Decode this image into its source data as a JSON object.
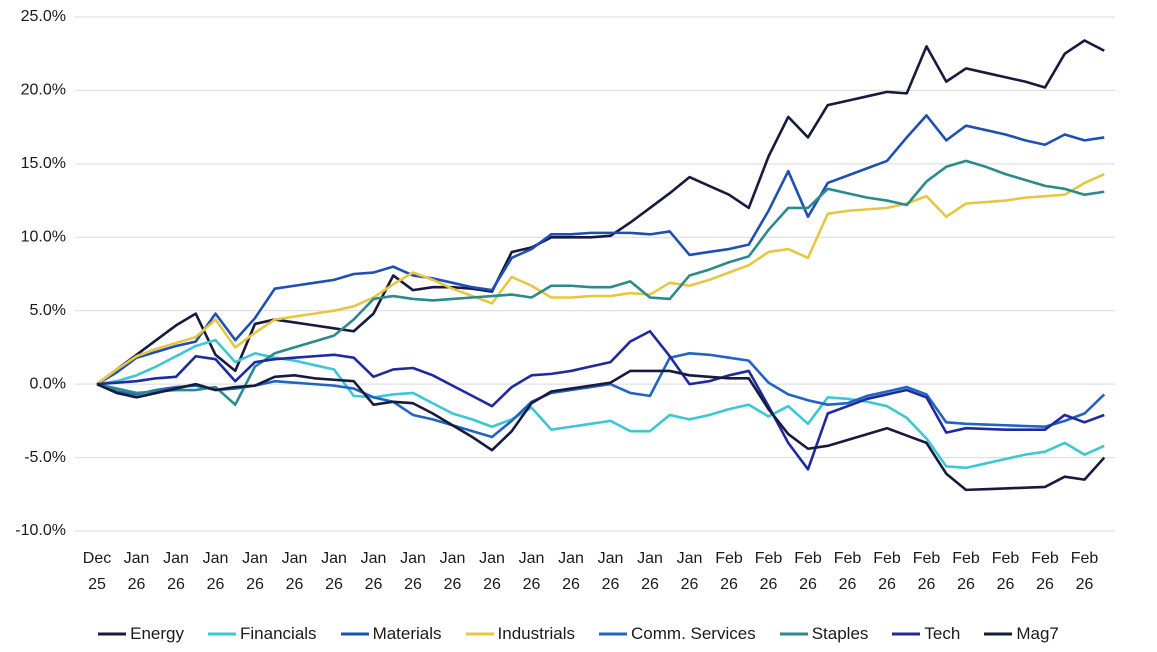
{
  "chart_data": {
    "type": "line",
    "categories": [
      "Dec 25",
      null,
      "Jan 26",
      null,
      "Jan 26",
      null,
      "Jan 26",
      null,
      "Jan 26",
      null,
      "Jan 26",
      null,
      "Jan 26",
      null,
      "Jan 26",
      null,
      "Jan 26",
      null,
      "Jan 26",
      null,
      "Jan 26",
      null,
      "Jan 26",
      null,
      "Jan 26",
      null,
      "Jan 26",
      null,
      "Jan 26",
      null,
      "Jan 26",
      null,
      "Feb 26",
      null,
      "Feb 26",
      null,
      "Feb 26",
      null,
      "Feb 26",
      null,
      "Feb 26",
      null,
      "Feb 26",
      null,
      "Feb 26",
      null,
      "Feb 26",
      null,
      "Feb 26",
      null,
      "Feb 26",
      null
    ],
    "ylim": [
      -10,
      25
    ],
    "yticks": [
      {
        "value": -10,
        "label": "-10.0%"
      },
      {
        "value": -5,
        "label": "-5.0%"
      },
      {
        "value": 0,
        "label": "0.0%"
      },
      {
        "value": 5,
        "label": "5.0%"
      },
      {
        "value": 10,
        "label": "10.0%"
      },
      {
        "value": 15,
        "label": "15.0%"
      },
      {
        "value": 20,
        "label": "20.0%"
      },
      {
        "value": 25,
        "label": "25.0%"
      }
    ],
    "grid": true,
    "series": [
      {
        "name": "Energy",
        "color": "#161b3d",
        "values": [
          0,
          1.0,
          2.0,
          3.0,
          4.0,
          4.8,
          2.0,
          0.9,
          4.1,
          4.4,
          4.2,
          4.0,
          3.8,
          3.6,
          4.8,
          7.4,
          6.4,
          6.6,
          6.6,
          6.5,
          6.3,
          9.0,
          9.3,
          10.0,
          10.0,
          10.0,
          10.1,
          11.0,
          12.0,
          13.0,
          14.1,
          13.5,
          12.9,
          12.0,
          15.5,
          18.2,
          16.8,
          19.0,
          19.3,
          19.6,
          19.9,
          19.8,
          23.0,
          20.6,
          21.5,
          21.2,
          20.9,
          20.6,
          20.2,
          22.5,
          23.4,
          22.7
        ]
      },
      {
        "name": "Financials",
        "color": "#3ec6d3",
        "values": [
          0,
          0.2,
          0.6,
          1.2,
          1.9,
          2.6,
          3.0,
          1.5,
          2.1,
          1.8,
          1.6,
          1.3,
          1.0,
          -0.8,
          -0.9,
          -0.7,
          -0.6,
          -1.3,
          -2.0,
          -2.4,
          -2.9,
          -2.4,
          -1.6,
          -3.1,
          -2.9,
          -2.7,
          -2.5,
          -3.2,
          -3.2,
          -2.1,
          -2.4,
          -2.1,
          -1.7,
          -1.4,
          -2.2,
          -1.5,
          -2.7,
          -0.9,
          -1.0,
          -1.2,
          -1.5,
          -2.3,
          -3.7,
          -5.6,
          -5.7,
          -5.4,
          -5.1,
          -4.8,
          -4.6,
          -4.0,
          -4.8,
          -4.2
        ]
      },
      {
        "name": "Materials",
        "color": "#1e4fb4",
        "values": [
          0,
          0.8,
          1.8,
          2.2,
          2.6,
          2.9,
          4.8,
          3.0,
          4.5,
          6.5,
          6.7,
          6.9,
          7.1,
          7.5,
          7.6,
          8.0,
          7.4,
          7.2,
          6.9,
          6.6,
          6.4,
          8.6,
          9.2,
          10.2,
          10.2,
          10.3,
          10.3,
          10.3,
          10.2,
          10.4,
          8.8,
          9.0,
          9.2,
          9.5,
          11.8,
          14.5,
          11.4,
          13.7,
          14.2,
          14.7,
          15.2,
          16.8,
          18.3,
          16.6,
          17.6,
          17.3,
          17.0,
          16.6,
          16.3,
          17.0,
          16.6,
          16.8
        ]
      },
      {
        "name": "Industrials",
        "color": "#e5c743",
        "values": [
          0,
          1.0,
          1.9,
          2.4,
          2.8,
          3.2,
          4.4,
          2.5,
          3.5,
          4.4,
          4.6,
          4.8,
          5.0,
          5.3,
          5.9,
          6.8,
          7.6,
          7.1,
          6.5,
          6.0,
          5.5,
          7.3,
          6.7,
          5.9,
          5.9,
          6.0,
          6.0,
          6.2,
          6.1,
          6.9,
          6.7,
          7.1,
          7.6,
          8.1,
          9.0,
          9.2,
          8.6,
          11.6,
          11.8,
          11.9,
          12.0,
          12.3,
          12.8,
          11.4,
          12.3,
          12.4,
          12.5,
          12.7,
          12.8,
          12.9,
          13.7,
          14.3
        ]
      },
      {
        "name": "Comm. Services",
        "color": "#2164c4",
        "values": [
          0,
          -0.5,
          -0.7,
          -0.4,
          -0.2,
          -0.1,
          -0.4,
          -0.3,
          -0.1,
          0.2,
          0.1,
          0.0,
          -0.1,
          -0.3,
          -0.9,
          -1.2,
          -2.1,
          -2.4,
          -2.8,
          -3.2,
          -3.6,
          -2.5,
          -1.2,
          -0.6,
          -0.4,
          -0.2,
          0.0,
          -0.6,
          -0.8,
          1.8,
          2.1,
          2.0,
          1.8,
          1.6,
          0.1,
          -0.7,
          -1.1,
          -1.4,
          -1.3,
          -0.8,
          -0.5,
          -0.2,
          -0.7,
          -2.6,
          -2.7,
          -2.75,
          -2.8,
          -2.85,
          -2.9,
          -2.5,
          -2.0,
          -0.7
        ]
      },
      {
        "name": "Staples",
        "color": "#2a8a8c",
        "values": [
          0,
          -0.3,
          -0.6,
          -0.5,
          -0.4,
          -0.4,
          -0.2,
          -1.4,
          1.2,
          2.1,
          2.5,
          2.9,
          3.3,
          4.4,
          5.8,
          6.0,
          5.8,
          5.7,
          5.8,
          5.9,
          6.0,
          6.1,
          5.9,
          6.7,
          6.7,
          6.6,
          6.6,
          7.0,
          5.9,
          5.8,
          7.4,
          7.8,
          8.3,
          8.7,
          10.5,
          12.0,
          12.0,
          13.3,
          13.0,
          12.7,
          12.5,
          12.2,
          13.8,
          14.8,
          15.2,
          14.8,
          14.3,
          13.9,
          13.5,
          13.3,
          12.9,
          13.1
        ]
      },
      {
        "name": "Tech",
        "color": "#1f2a9e",
        "values": [
          0,
          0.1,
          0.2,
          0.4,
          0.5,
          1.9,
          1.7,
          0.2,
          1.5,
          1.7,
          1.8,
          1.9,
          2.0,
          1.8,
          0.5,
          1.0,
          1.1,
          0.6,
          -0.1,
          -0.8,
          -1.5,
          -0.2,
          0.6,
          0.7,
          0.9,
          1.2,
          1.5,
          2.9,
          3.6,
          1.9,
          0.0,
          0.2,
          0.6,
          0.9,
          -1.5,
          -4.0,
          -5.8,
          -2.0,
          -1.5,
          -1.0,
          -0.7,
          -0.4,
          -0.9,
          -3.3,
          -3.0,
          -3.05,
          -3.1,
          -3.1,
          -3.1,
          -2.1,
          -2.6,
          -2.1
        ]
      },
      {
        "name": "Mag7",
        "color": "#161b3d",
        "values": [
          0,
          -0.6,
          -0.9,
          -0.6,
          -0.3,
          0.0,
          -0.4,
          -0.2,
          -0.1,
          0.5,
          0.6,
          0.4,
          0.3,
          0.2,
          -1.4,
          -1.2,
          -1.3,
          -2.0,
          -2.8,
          -3.6,
          -4.5,
          -3.2,
          -1.3,
          -0.5,
          -0.3,
          -0.1,
          0.1,
          0.9,
          0.9,
          0.9,
          0.6,
          0.5,
          0.4,
          0.4,
          -1.7,
          -3.4,
          -4.4,
          -4.2,
          -3.8,
          -3.4,
          -3.0,
          -3.5,
          -4.0,
          -6.1,
          -7.2,
          -7.15,
          -7.1,
          -7.05,
          -7.0,
          -6.3,
          -6.5,
          -5.0
        ]
      }
    ]
  }
}
